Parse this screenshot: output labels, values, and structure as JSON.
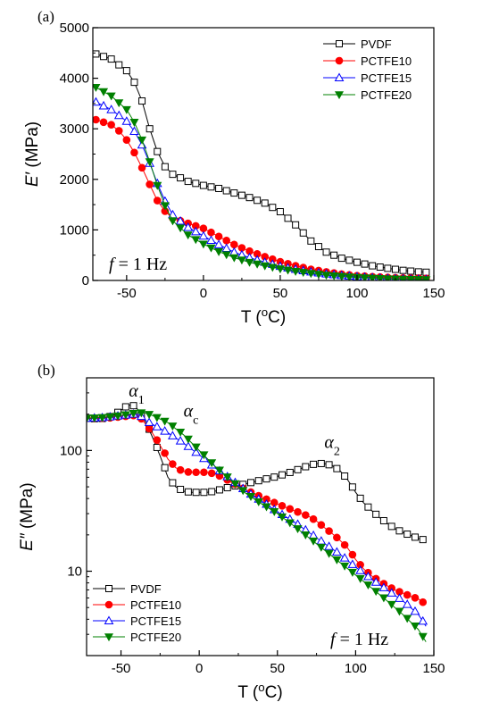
{
  "chart_data": [
    {
      "type": "line",
      "panel_label": "(a)",
      "ylabel": "E′ (MPa)",
      "xlabel": "T (°C)",
      "annotation": "f = 1 Hz",
      "xlim": [
        -72,
        150
      ],
      "ylim": [
        0,
        5000
      ],
      "x_ticks": [
        -50,
        0,
        50,
        100,
        150
      ],
      "y_ticks": [
        0,
        1000,
        2000,
        3000,
        4000,
        5000
      ],
      "y_scale": "linear",
      "legend_position": "top-right",
      "series": [
        {
          "name": "PVDF",
          "marker": "square-open",
          "color": "#000000",
          "points": [
            [
              -70,
              4480
            ],
            [
              -60,
              4380
            ],
            [
              -50,
              4150
            ],
            [
              -45,
              3920
            ],
            [
              -40,
              3550
            ],
            [
              -35,
              3000
            ],
            [
              -30,
              2550
            ],
            [
              -25,
              2250
            ],
            [
              -20,
              2100
            ],
            [
              -10,
              1960
            ],
            [
              0,
              1880
            ],
            [
              10,
              1820
            ],
            [
              20,
              1730
            ],
            [
              30,
              1640
            ],
            [
              40,
              1530
            ],
            [
              50,
              1360
            ],
            [
              60,
              1100
            ],
            [
              70,
              780
            ],
            [
              80,
              560
            ],
            [
              90,
              440
            ],
            [
              100,
              360
            ],
            [
              110,
              290
            ],
            [
              120,
              240
            ],
            [
              130,
              200
            ],
            [
              140,
              170
            ],
            [
              147,
              160
            ]
          ]
        },
        {
          "name": "PCTFE10",
          "marker": "circle-filled",
          "color": "#ff0000",
          "points": [
            [
              -70,
              3180
            ],
            [
              -60,
              3080
            ],
            [
              -55,
              2960
            ],
            [
              -50,
              2780
            ],
            [
              -45,
              2530
            ],
            [
              -40,
              2230
            ],
            [
              -35,
              1900
            ],
            [
              -30,
              1580
            ],
            [
              -25,
              1370
            ],
            [
              -20,
              1230
            ],
            [
              -10,
              1130
            ],
            [
              0,
              1030
            ],
            [
              10,
              870
            ],
            [
              20,
              710
            ],
            [
              30,
              580
            ],
            [
              40,
              470
            ],
            [
              50,
              370
            ],
            [
              60,
              290
            ],
            [
              70,
              220
            ],
            [
              80,
              170
            ],
            [
              90,
              125
            ],
            [
              100,
              95
            ],
            [
              110,
              75
            ],
            [
              120,
              60
            ],
            [
              130,
              50
            ],
            [
              140,
              45
            ],
            [
              147,
              40
            ]
          ]
        },
        {
          "name": "PCTFE15",
          "marker": "triangle-open",
          "color": "#0000ff",
          "points": [
            [
              -70,
              3530
            ],
            [
              -60,
              3380
            ],
            [
              -50,
              3150
            ],
            [
              -45,
              2950
            ],
            [
              -40,
              2680
            ],
            [
              -35,
              2320
            ],
            [
              -30,
              1920
            ],
            [
              -25,
              1570
            ],
            [
              -20,
              1300
            ],
            [
              -10,
              1050
            ],
            [
              0,
              880
            ],
            [
              10,
              710
            ],
            [
              20,
              560
            ],
            [
              30,
              450
            ],
            [
              40,
              360
            ],
            [
              50,
              280
            ],
            [
              60,
              220
            ],
            [
              70,
              170
            ],
            [
              80,
              130
            ],
            [
              90,
              100
            ],
            [
              100,
              75
            ],
            [
              110,
              55
            ],
            [
              120,
              40
            ],
            [
              130,
              30
            ],
            [
              140,
              25
            ],
            [
              147,
              20
            ]
          ]
        },
        {
          "name": "PCTFE20",
          "marker": "triangle-down-filled",
          "color": "#008000",
          "points": [
            [
              -70,
              3820
            ],
            [
              -60,
              3650
            ],
            [
              -50,
              3380
            ],
            [
              -45,
              3130
            ],
            [
              -40,
              2780
            ],
            [
              -35,
              2350
            ],
            [
              -30,
              1880
            ],
            [
              -25,
              1480
            ],
            [
              -20,
              1180
            ],
            [
              -10,
              900
            ],
            [
              0,
              720
            ],
            [
              10,
              570
            ],
            [
              20,
              450
            ],
            [
              30,
              360
            ],
            [
              40,
              290
            ],
            [
              50,
              230
            ],
            [
              60,
              180
            ],
            [
              70,
              140
            ],
            [
              80,
              105
            ],
            [
              90,
              80
            ],
            [
              100,
              60
            ],
            [
              110,
              45
            ],
            [
              120,
              33
            ],
            [
              130,
              25
            ],
            [
              140,
              20
            ],
            [
              147,
              15
            ]
          ]
        }
      ]
    },
    {
      "type": "line",
      "panel_label": "(b)",
      "ylabel": "E″ (MPa)",
      "xlabel": "T (°C)",
      "annotation": "f = 1 Hz",
      "peak_labels": [
        {
          "text": "α1",
          "at": [
            -45,
            280
          ]
        },
        {
          "text": "αc",
          "at": [
            -10,
            190
          ]
        },
        {
          "text": "α2",
          "at": [
            80,
            105
          ]
        }
      ],
      "xlim": [
        -72,
        150
      ],
      "ylim": [
        2,
        400
      ],
      "x_ticks": [
        -50,
        0,
        50,
        100,
        150
      ],
      "y_ticks": [
        10,
        100
      ],
      "y_scale": "log",
      "legend_position": "bottom-left",
      "series": [
        {
          "name": "PVDF",
          "marker": "square-open",
          "color": "#000000",
          "points": [
            [
              -72,
              185
            ],
            [
              -65,
              183
            ],
            [
              -60,
              185
            ],
            [
              -55,
              195
            ],
            [
              -50,
              215
            ],
            [
              -46,
              235
            ],
            [
              -43,
              240
            ],
            [
              -40,
              225
            ],
            [
              -35,
              180
            ],
            [
              -30,
              130
            ],
            [
              -25,
              90
            ],
            [
              -20,
              60
            ],
            [
              -15,
              50
            ],
            [
              -10,
              46
            ],
            [
              -5,
              45
            ],
            [
              0,
              45
            ],
            [
              5,
              45
            ],
            [
              10,
              46
            ],
            [
              20,
              50
            ],
            [
              30,
              53
            ],
            [
              40,
              57
            ],
            [
              50,
              61
            ],
            [
              60,
              67
            ],
            [
              70,
              75
            ],
            [
              75,
              78
            ],
            [
              80,
              78
            ],
            [
              85,
              75
            ],
            [
              90,
              68
            ],
            [
              95,
              57
            ],
            [
              100,
              45
            ],
            [
              105,
              37
            ],
            [
              110,
              32
            ],
            [
              115,
              28
            ],
            [
              120,
              25
            ],
            [
              125,
              22.5
            ],
            [
              130,
              21
            ],
            [
              135,
              19.8
            ],
            [
              140,
              18.7
            ],
            [
              145,
              18
            ]
          ]
        },
        {
          "name": "PCTFE10",
          "marker": "circle-filled",
          "color": "#ff0000",
          "points": [
            [
              -72,
              185
            ],
            [
              -60,
              185
            ],
            [
              -50,
              190
            ],
            [
              -42,
              195
            ],
            [
              -38,
              190
            ],
            [
              -35,
              170
            ],
            [
              -30,
              140
            ],
            [
              -25,
              110
            ],
            [
              -20,
              85
            ],
            [
              -15,
              72
            ],
            [
              -10,
              67
            ],
            [
              -5,
              66
            ],
            [
              0,
              66
            ],
            [
              5,
              66
            ],
            [
              10,
              64
            ],
            [
              15,
              60
            ],
            [
              20,
              55
            ],
            [
              30,
              47
            ],
            [
              40,
              41
            ],
            [
              50,
              36
            ],
            [
              60,
              32
            ],
            [
              70,
              28.5
            ],
            [
              75,
              26
            ],
            [
              80,
              23
            ],
            [
              85,
              20.5
            ],
            [
              90,
              18
            ],
            [
              95,
              15.5
            ],
            [
              100,
              12.5
            ],
            [
              105,
              10.5
            ],
            [
              110,
              9.2
            ],
            [
              115,
              8.3
            ],
            [
              120,
              7.6
            ],
            [
              125,
              7
            ],
            [
              130,
              6.6
            ],
            [
              135,
              6.2
            ],
            [
              140,
              5.9
            ],
            [
              145,
              5.3
            ]
          ]
        },
        {
          "name": "PCTFE15",
          "marker": "triangle-open",
          "color": "#0000ff",
          "points": [
            [
              -72,
              185
            ],
            [
              -60,
              188
            ],
            [
              -50,
              195
            ],
            [
              -42,
              200
            ],
            [
              -38,
              198
            ],
            [
              -35,
              180
            ],
            [
              -30,
              165
            ],
            [
              -20,
              140
            ],
            [
              -10,
              115
            ],
            [
              0,
              92
            ],
            [
              10,
              72
            ],
            [
              20,
              58
            ],
            [
              30,
              46
            ],
            [
              40,
              38
            ],
            [
              50,
              31
            ],
            [
              60,
              26
            ],
            [
              70,
              21
            ],
            [
              80,
              17
            ],
            [
              90,
              13.8
            ],
            [
              100,
              10.8
            ],
            [
              110,
              8.6
            ],
            [
              120,
              7
            ],
            [
              130,
              5.7
            ],
            [
              140,
              4.4
            ],
            [
              145,
              3.5
            ]
          ]
        },
        {
          "name": "PCTFE20",
          "marker": "triangle-down-filled",
          "color": "#008000",
          "points": [
            [
              -72,
              185
            ],
            [
              -60,
              188
            ],
            [
              -50,
              195
            ],
            [
              -40,
              205
            ],
            [
              -35,
              205
            ],
            [
              -30,
              195
            ],
            [
              -20,
              170
            ],
            [
              -10,
              135
            ],
            [
              0,
              100
            ],
            [
              10,
              74
            ],
            [
              20,
              57
            ],
            [
              30,
              44
            ],
            [
              40,
              36
            ],
            [
              50,
              30
            ],
            [
              60,
              24
            ],
            [
              70,
              19
            ],
            [
              80,
              15
            ],
            [
              90,
              11.8
            ],
            [
              100,
              9.3
            ],
            [
              110,
              7.3
            ],
            [
              120,
              5.7
            ],
            [
              130,
              4.4
            ],
            [
              140,
              3.3
            ],
            [
              145,
              2.6
            ]
          ]
        }
      ]
    }
  ]
}
